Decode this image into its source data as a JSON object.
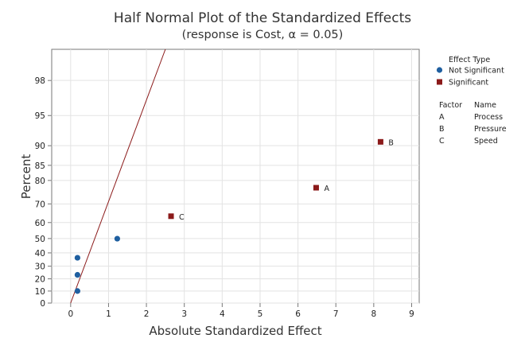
{
  "chart_data": {
    "type": "scatter",
    "title": "Half Normal Plot of the Standardized Effects",
    "subtitle": "(response is Cost, α = 0.05)",
    "xlabel": "Absolute Standardized Effect",
    "ylabel": "Percent",
    "xlim": [
      -0.5,
      9.2
    ],
    "x_ticks": [
      0,
      1,
      2,
      3,
      4,
      5,
      6,
      7,
      8,
      9
    ],
    "y_ticks": [
      0,
      10,
      20,
      30,
      40,
      50,
      60,
      70,
      80,
      85,
      90,
      95,
      98
    ],
    "y_scale": "half-normal probability",
    "ylim": [
      0,
      99.2
    ],
    "grid": true,
    "points": [
      {
        "x": 0.18,
        "y": 10.0,
        "type": "Not Significant",
        "label": ""
      },
      {
        "x": 0.18,
        "y": 23.2,
        "type": "Not Significant",
        "label": ""
      },
      {
        "x": 0.18,
        "y": 36.4,
        "type": "Not Significant",
        "label": ""
      },
      {
        "x": 1.23,
        "y": 49.9,
        "type": "Not Significant",
        "label": ""
      },
      {
        "x": 2.65,
        "y": 63.6,
        "type": "Significant",
        "label": "C"
      },
      {
        "x": 6.48,
        "y": 77.2,
        "type": "Significant",
        "label": "A"
      },
      {
        "x": 8.18,
        "y": 90.8,
        "type": "Significant",
        "label": "B"
      }
    ],
    "reference_line": {
      "x_start": 0,
      "y_start": 0,
      "x_end": 2.5,
      "y_end": 99.2,
      "color": "#8b1a1a"
    },
    "legend": {
      "placement": "right",
      "title": "Effect Type",
      "entries": [
        {
          "label": "Not Significant",
          "marker": "circle",
          "color": "#1f5fa0"
        },
        {
          "label": "Significant",
          "marker": "square",
          "color": "#8b1a1a"
        }
      ]
    },
    "factor_table": {
      "headers": [
        "Factor",
        "Name"
      ],
      "rows": [
        [
          "A",
          "Process"
        ],
        [
          "B",
          "Pressure"
        ],
        [
          "C",
          "Speed"
        ]
      ]
    },
    "colors": {
      "not_significant": "#1f5fa0",
      "significant": "#8b1a1a",
      "grid": "#e3e3e3",
      "axis": "#777777"
    }
  }
}
